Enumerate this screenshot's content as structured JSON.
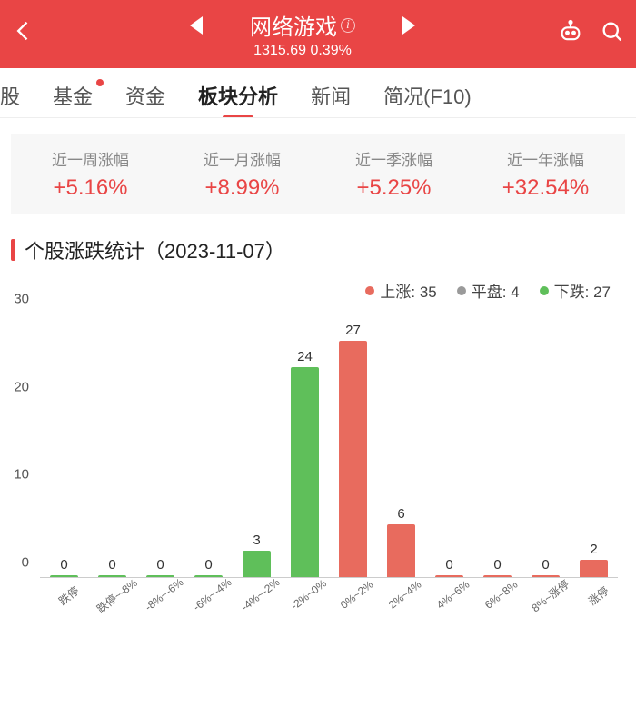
{
  "header": {
    "title": "网络游戏",
    "index_value": "1315.69",
    "change_pct": "0.39%"
  },
  "tabs": {
    "items": [
      {
        "label": "股",
        "active": false,
        "dot": false
      },
      {
        "label": "基金",
        "active": false,
        "dot": true
      },
      {
        "label": "资金",
        "active": false,
        "dot": false
      },
      {
        "label": "板块分析",
        "active": true,
        "dot": false
      },
      {
        "label": "新闻",
        "active": false,
        "dot": false
      },
      {
        "label": "简况(F10)",
        "active": false,
        "dot": false
      }
    ]
  },
  "period_stats": [
    {
      "label": "近一周涨幅",
      "value": "+5.16%"
    },
    {
      "label": "近一月涨幅",
      "value": "+8.99%"
    },
    {
      "label": "近一季涨幅",
      "value": "+5.25%"
    },
    {
      "label": "近一年涨幅",
      "value": "+32.54%"
    }
  ],
  "section_title": "个股涨跌统计（2023-11-07）",
  "legend": {
    "up": {
      "label": "上涨",
      "count": 35,
      "color": "#e86b5e"
    },
    "flat": {
      "label": "平盘",
      "count": 4,
      "color": "#9a9a9a"
    },
    "down": {
      "label": "下跌",
      "count": 27,
      "color": "#5fbf5a"
    }
  },
  "chart": {
    "type": "bar",
    "ylim": [
      0,
      30
    ],
    "ytick_step": 10,
    "yticks": [
      0,
      10,
      20,
      30
    ],
    "background_color": "#ffffff",
    "bar_width_ratio": 0.6,
    "label_fontsize": 15,
    "axis_color": "#cccccc",
    "categories": [
      "跌停",
      "跌停~-8%",
      "-8%~-6%",
      "-6%~-4%",
      "-4%~-2%",
      "-2%~0%",
      "0%~2%",
      "2%~4%",
      "4%~6%",
      "6%~8%",
      "8%~涨停",
      "涨停"
    ],
    "values": [
      0,
      0,
      0,
      0,
      3,
      24,
      27,
      6,
      0,
      0,
      0,
      2
    ],
    "bar_colors": [
      "#5fbf5a",
      "#5fbf5a",
      "#5fbf5a",
      "#5fbf5a",
      "#5fbf5a",
      "#5fbf5a",
      "#e86b5e",
      "#e86b5e",
      "#e86b5e",
      "#e86b5e",
      "#e86b5e",
      "#e86b5e"
    ]
  }
}
